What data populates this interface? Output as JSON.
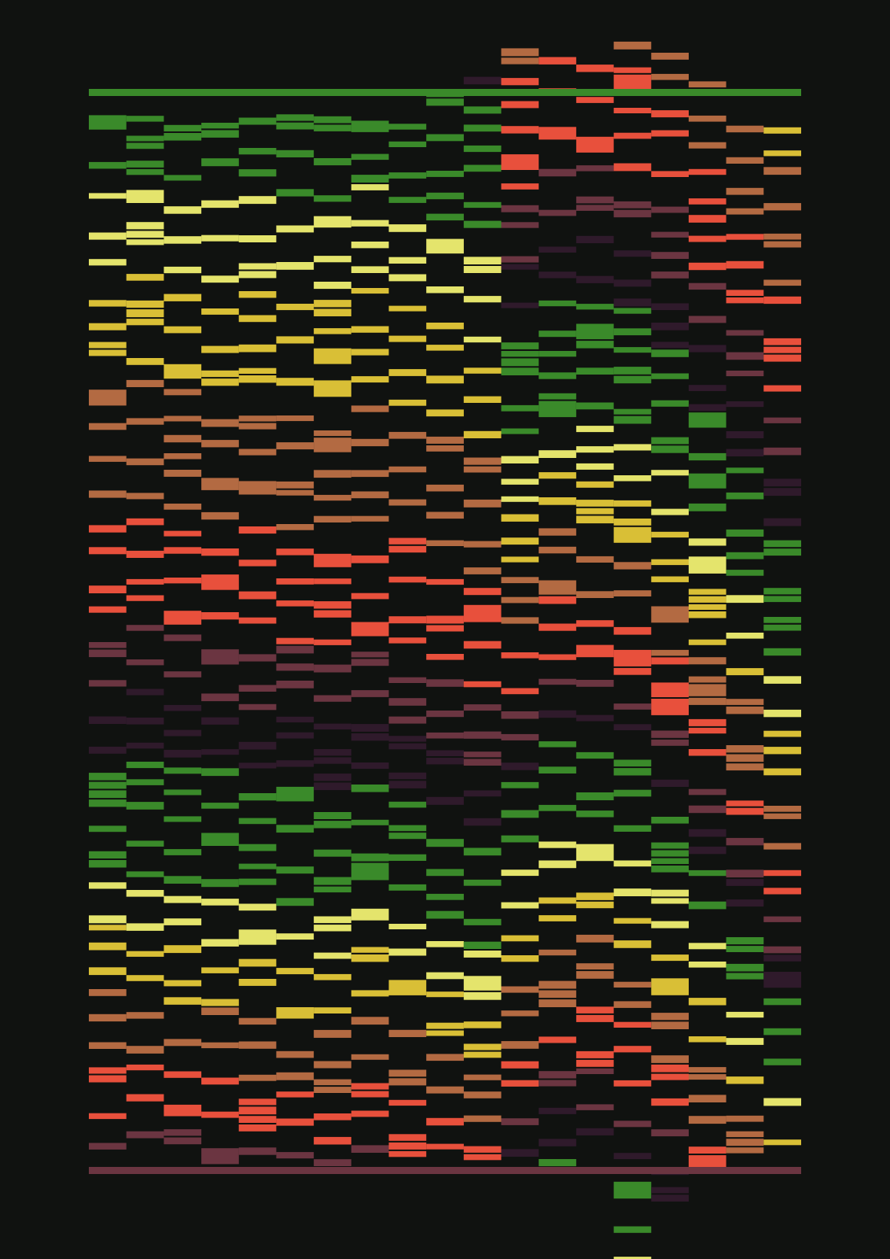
{
  "background": "#101210",
  "palette": {
    "green": "#3a8a2a",
    "light_yellow": "#e4e46c",
    "yellow": "#d9bf36",
    "orange": "#b36a42",
    "red": "#e8503c",
    "maroon": "#6b3541",
    "dark_purple": "#2f1a2b"
  },
  "color_cycle": [
    "green",
    "light_yellow",
    "yellow",
    "orange",
    "red",
    "maroon",
    "dark_purple"
  ],
  "top_rule_color": "#3a8a2a",
  "bottom_rule_color": "#6b3541",
  "column_count": 19
}
